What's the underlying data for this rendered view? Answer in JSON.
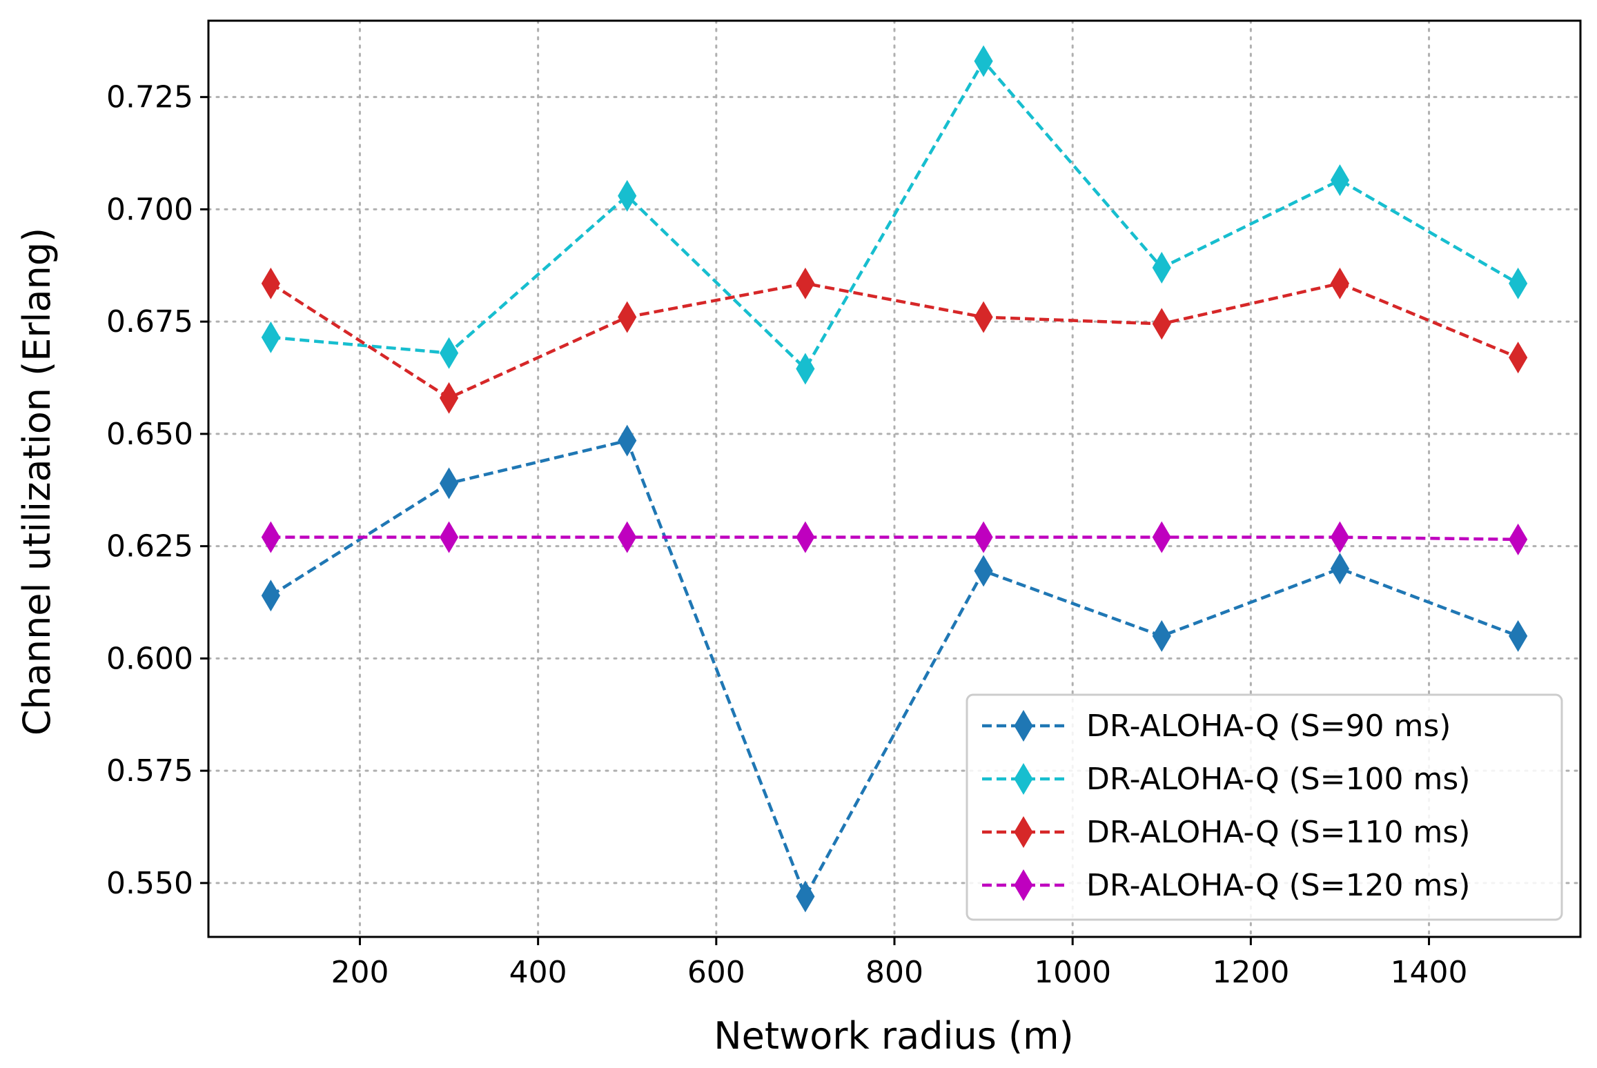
{
  "chart_data": {
    "type": "line",
    "title": "",
    "xlabel": "Network radius (m)",
    "ylabel": "Channel utilization (Erlang)",
    "xlim": [
      30,
      1570
    ],
    "ylim": [
      0.538,
      0.742
    ],
    "xticks": [
      200,
      400,
      600,
      800,
      1000,
      1200,
      1400
    ],
    "yticks": [
      0.55,
      0.575,
      0.6,
      0.625,
      0.65,
      0.675,
      0.7,
      0.725
    ],
    "x_tick_labels": [
      "200",
      "400",
      "600",
      "800",
      "1000",
      "1200",
      "1400"
    ],
    "y_tick_labels": [
      "0.550",
      "0.575",
      "0.600",
      "0.625",
      "0.650",
      "0.675",
      "0.700",
      "0.725"
    ],
    "grid": true,
    "legend_position": "lower-right",
    "x": [
      100,
      300,
      500,
      700,
      900,
      1100,
      1300,
      1500
    ],
    "series": [
      {
        "name": "DR-ALOHA-Q (S=90 ms)",
        "color": "#1f77b4",
        "marker": "thin-diamond",
        "linestyle": "dashed",
        "values": [
          0.614,
          0.639,
          0.6485,
          0.547,
          0.6195,
          0.605,
          0.62,
          0.605
        ]
      },
      {
        "name": "DR-ALOHA-Q (S=100 ms)",
        "color": "#17becf",
        "marker": "thin-diamond",
        "linestyle": "dashed",
        "values": [
          0.6715,
          0.668,
          0.703,
          0.6645,
          0.733,
          0.687,
          0.7065,
          0.6835
        ]
      },
      {
        "name": "DR-ALOHA-Q (S=110 ms)",
        "color": "#d62728",
        "marker": "thin-diamond",
        "linestyle": "dashed",
        "values": [
          0.6835,
          0.658,
          0.676,
          0.6835,
          0.676,
          0.6745,
          0.6835,
          0.667
        ]
      },
      {
        "name": "DR-ALOHA-Q (S=120 ms)",
        "color": "#bf00bf",
        "marker": "thin-diamond",
        "linestyle": "dashed",
        "values": [
          0.627,
          0.627,
          0.627,
          0.627,
          0.627,
          0.627,
          0.627,
          0.6265
        ]
      }
    ]
  }
}
